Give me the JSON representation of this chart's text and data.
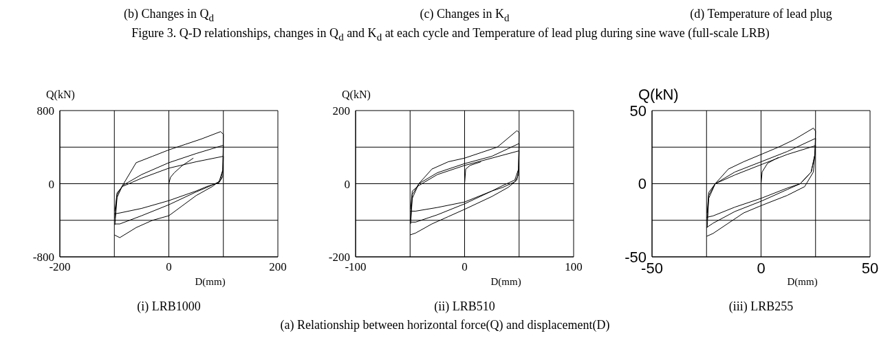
{
  "chart_data": [
    {
      "type": "line",
      "xlabel": "D(mm)",
      "ylabel": "Q(kN)",
      "annotations": [
        "(b) Changes in Q$_{d}$",
        "(i) LRB1000"
      ],
      "xlim": [
        -200,
        200
      ],
      "xticks": [
        -200,
        {
          "value": -100,
          "label": null
        },
        0,
        {
          "value": 100,
          "label": null
        },
        200
      ],
      "ylim": [
        -800,
        800
      ],
      "yticks": [
        -800,
        {
          "value": -400,
          "label": null
        },
        0,
        {
          "value": 400,
          "label": null
        },
        800
      ],
      "grid": true,
      "marker": "none",
      "line_style": "solid",
      "series": [
        {
          "color": "#000000",
          "x": [
            -99,
            -95,
            -85,
            -60,
            -30,
            0,
            30,
            60,
            95,
            100
          ],
          "values": [
            -450,
            -150,
            -20,
            230,
            300,
            370,
            430,
            490,
            570,
            540
          ]
        },
        {
          "color": "#000000",
          "x": [
            100,
            99,
            95,
            80,
            50,
            0,
            -30,
            -60,
            -90,
            -100
          ],
          "values": [
            540,
            150,
            40,
            -30,
            -130,
            -350,
            -400,
            -480,
            -590,
            -560
          ]
        },
        {
          "color": "#000000",
          "x": [
            -99,
            -95,
            -85,
            -50,
            0,
            50,
            100
          ],
          "values": [
            -380,
            -120,
            -20,
            100,
            230,
            330,
            420
          ]
        },
        {
          "color": "#000000",
          "x": [
            100,
            99,
            92,
            70,
            50,
            0,
            -50,
            -90,
            -100
          ],
          "values": [
            420,
            150,
            20,
            -40,
            -90,
            -230,
            -350,
            -440,
            -440
          ]
        },
        {
          "color": "#000000",
          "x": [
            -99,
            -95,
            -85,
            -50,
            0,
            50,
            100
          ],
          "values": [
            -300,
            -100,
            -30,
            60,
            170,
            240,
            300
          ]
        },
        {
          "color": "#000000",
          "x": [
            100,
            99,
            92,
            70,
            50,
            0,
            -50,
            -90,
            -100
          ],
          "values": [
            300,
            80,
            10,
            -30,
            -80,
            -185,
            -270,
            -320,
            -330
          ]
        },
        {
          "color": "#000000",
          "x": [
            0,
            3,
            10,
            25,
            45
          ],
          "values": [
            0,
            70,
            120,
            200,
            280
          ]
        }
      ]
    },
    {
      "type": "line",
      "subtitle": "Figure 3. Q-D relationships, changes in Q$_{d}$ and K$_{d}$ at each cycle and Temperature of lead plug during sine wave (full-scale LRB)",
      "xlabel": "D(mm)",
      "ylabel": "Q(kN)",
      "annotations": [
        "(c) Changes in K$_{d}$",
        "(ii) LRB510",
        "(a) Relationship between horizontal force(Q) and displacement(D)"
      ],
      "xlim": [
        -100,
        100
      ],
      "xticks": [
        -100,
        {
          "value": -50,
          "label": null
        },
        0,
        {
          "value": 50,
          "label": null
        },
        100
      ],
      "ylim": [
        -200,
        200
      ],
      "yticks": [
        -200,
        {
          "value": -100,
          "label": null
        },
        0,
        {
          "value": 100,
          "label": null
        },
        200
      ],
      "grid": true,
      "marker": "none",
      "line_style": "solid",
      "series": [
        {
          "color": "#000000",
          "x": [
            -49.5,
            -48,
            -42,
            -30,
            -15,
            0,
            15,
            30,
            48,
            50
          ],
          "values": [
            -110,
            -40,
            0,
            40,
            60,
            70,
            85,
            100,
            145,
            140
          ]
        },
        {
          "color": "#000000",
          "x": [
            50,
            49.5,
            48,
            40,
            25,
            0,
            -15,
            -30,
            -45,
            -50
          ],
          "values": [
            140,
            40,
            10,
            -10,
            -35,
            -70,
            -90,
            -110,
            -135,
            -140
          ]
        },
        {
          "color": "#000000",
          "x": [
            -49.5,
            -48,
            -42,
            -25,
            0,
            25,
            50
          ],
          "values": [
            -100,
            -30,
            0,
            30,
            55,
            75,
            110
          ]
        },
        {
          "color": "#000000",
          "x": [
            50,
            49.5,
            46,
            35,
            25,
            0,
            -25,
            -45,
            -50
          ],
          "values": [
            110,
            40,
            10,
            -5,
            -20,
            -55,
            -85,
            -105,
            -105
          ]
        },
        {
          "color": "#000000",
          "x": [
            -49.5,
            -48,
            -42,
            -25,
            0,
            25,
            50
          ],
          "values": [
            -70,
            -20,
            -5,
            25,
            50,
            70,
            90
          ]
        },
        {
          "color": "#000000",
          "x": [
            50,
            49.5,
            46,
            35,
            25,
            0,
            -25,
            -45,
            -50
          ],
          "values": [
            90,
            25,
            5,
            -10,
            -20,
            -50,
            -65,
            -75,
            -75
          ]
        },
        {
          "color": "#000000",
          "x": [
            0,
            1,
            5,
            15
          ],
          "values": [
            0,
            40,
            50,
            60
          ]
        }
      ]
    },
    {
      "type": "line",
      "xlabel": "D(mm)",
      "ylabel": "Q(kN)",
      "annotations": [
        "(d) Temperature of lead plug",
        "(iii) LRB255"
      ],
      "xlim": [
        -50,
        50
      ],
      "xticks": [
        -50,
        {
          "value": -25,
          "label": null
        },
        0,
        {
          "value": 25,
          "label": null
        },
        50
      ],
      "ylim": [
        -50,
        50
      ],
      "yticks": [
        -50,
        {
          "value": -25,
          "label": null
        },
        0,
        {
          "value": 25,
          "label": null
        },
        50
      ],
      "grid": true,
      "marker": "none",
      "line_style": "solid",
      "series": [
        {
          "color": "#000000",
          "x": [
            -24.7,
            -24,
            -21,
            -15,
            -8,
            0,
            8,
            15,
            24,
            25
          ],
          "values": [
            -30,
            -10,
            0,
            10,
            15,
            20,
            25,
            30,
            38,
            36
          ]
        },
        {
          "color": "#000000",
          "x": [
            25,
            24.7,
            24,
            20,
            12,
            0,
            -8,
            -15,
            -22,
            -25
          ],
          "values": [
            36,
            20,
            8,
            -2,
            -8,
            -15,
            -20,
            -27,
            -34,
            -36
          ]
        },
        {
          "color": "#000000",
          "x": [
            -24.7,
            -24,
            -21,
            -12,
            0,
            12,
            25
          ],
          "values": [
            -25,
            -8,
            0,
            8,
            15,
            22,
            31
          ]
        },
        {
          "color": "#000000",
          "x": [
            25,
            24.7,
            23,
            18,
            12,
            0,
            -12,
            -22,
            -25
          ],
          "values": [
            31,
            20,
            8,
            0,
            -4,
            -12,
            -19,
            -27,
            -30
          ]
        },
        {
          "color": "#000000",
          "x": [
            -24.7,
            -24,
            -21,
            -12,
            0,
            12,
            25
          ],
          "values": [
            -20,
            -6,
            0,
            6,
            13,
            20,
            26
          ]
        },
        {
          "color": "#000000",
          "x": [
            25,
            24.7,
            23,
            18,
            12,
            0,
            -12,
            -22,
            -25
          ],
          "values": [
            26,
            20,
            8,
            0,
            -3,
            -10,
            -16,
            -22,
            -23
          ]
        },
        {
          "color": "#000000",
          "x": [
            0,
            0.5,
            3,
            8
          ],
          "values": [
            0,
            8,
            14,
            18
          ]
        }
      ]
    }
  ]
}
